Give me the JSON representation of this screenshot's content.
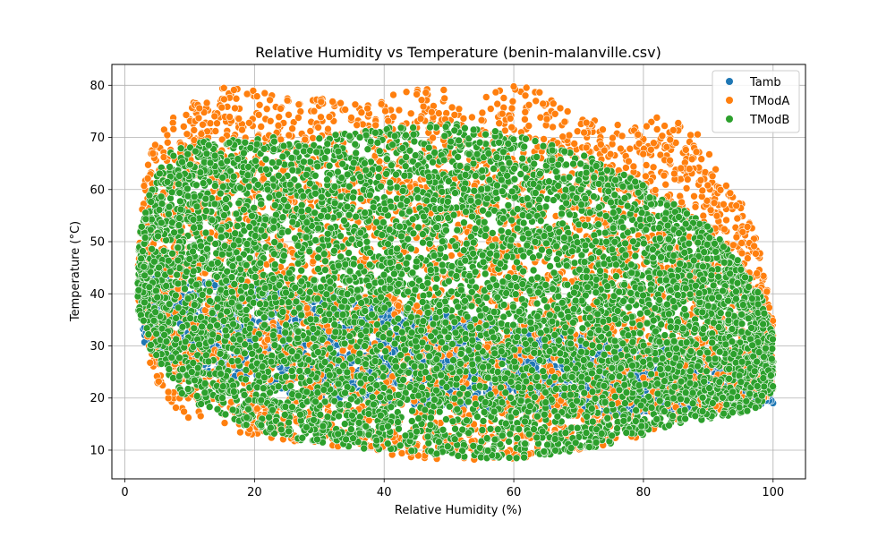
{
  "chart_data": {
    "type": "scatter",
    "title": "Relative Humidity vs Temperature (benin-malanville.csv)",
    "xlabel": "Relative Humidity (%)",
    "ylabel": "Temperature (°C)",
    "xlim": [
      -2,
      105
    ],
    "ylim": [
      4.5,
      84
    ],
    "xticks": [
      0,
      20,
      40,
      60,
      80,
      100
    ],
    "yticks": [
      10,
      20,
      30,
      40,
      50,
      60,
      70,
      80
    ],
    "grid": true,
    "legend_position": "top-right",
    "series": [
      {
        "name": "Tamb",
        "color": "#1f77b4",
        "band": [
          [
            2.5,
            31,
            44
          ],
          [
            5,
            28.5,
            43.5
          ],
          [
            10,
            25,
            43
          ],
          [
            20,
            21.5,
            42
          ],
          [
            30,
            20,
            40.5
          ],
          [
            40,
            19,
            38
          ],
          [
            50,
            18,
            36
          ],
          [
            60,
            17.5,
            34
          ],
          [
            70,
            17,
            32
          ],
          [
            80,
            17,
            30
          ],
          [
            90,
            17.5,
            28
          ],
          [
            100,
            19,
            26
          ]
        ]
      },
      {
        "name": "TModA",
        "color": "#ff7f0e",
        "band": [
          [
            2,
            40,
            48
          ],
          [
            3,
            30,
            62
          ],
          [
            5,
            22,
            72
          ],
          [
            8,
            17,
            75
          ],
          [
            15,
            14,
            80
          ],
          [
            25,
            11,
            78
          ],
          [
            35,
            10,
            77
          ],
          [
            45,
            8.5,
            80
          ],
          [
            55,
            8,
            78
          ],
          [
            62,
            8.5,
            81
          ],
          [
            70,
            10,
            74
          ],
          [
            78,
            12,
            72
          ],
          [
            82,
            14,
            74
          ],
          [
            88,
            16,
            72
          ],
          [
            92,
            17,
            63
          ],
          [
            96,
            18,
            56
          ],
          [
            98,
            19,
            48
          ],
          [
            100,
            20,
            36
          ]
        ]
      },
      {
        "name": "TModB",
        "color": "#2ca02c",
        "band": [
          [
            2,
            37,
            50
          ],
          [
            4,
            29,
            60
          ],
          [
            7,
            23,
            68
          ],
          [
            10,
            19,
            69
          ],
          [
            20,
            14,
            70
          ],
          [
            30,
            11,
            70
          ],
          [
            40,
            10,
            72
          ],
          [
            50,
            9,
            73
          ],
          [
            58,
            8,
            71
          ],
          [
            65,
            9,
            69
          ],
          [
            72,
            10,
            66
          ],
          [
            80,
            13,
            61
          ],
          [
            85,
            15,
            57
          ],
          [
            90,
            16,
            53
          ],
          [
            95,
            17,
            46
          ],
          [
            98,
            18,
            40
          ],
          [
            100,
            21,
            33
          ]
        ]
      }
    ]
  }
}
